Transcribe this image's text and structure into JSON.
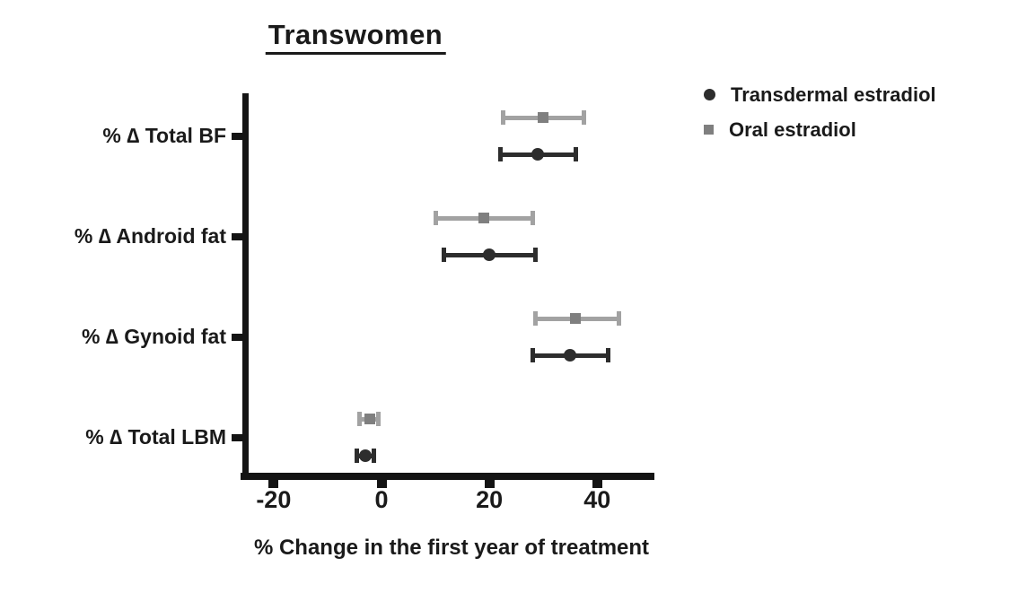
{
  "chart_data": {
    "type": "scatter",
    "subtype": "horizontal-dot-plot-with-error-bars",
    "title": "Transwomen",
    "xlabel": "% Change in the first year of treatment",
    "ylabel": "",
    "categories": [
      "% ∆ Total BF",
      "% ∆ Android fat",
      "% ∆ Gynoid fat",
      "% ∆ Total LBM"
    ],
    "x_ticks": [
      -20,
      0,
      20,
      40
    ],
    "xlim": [
      -26,
      50
    ],
    "grid": false,
    "legend_position": "top-right",
    "axis_color": "#141414",
    "series": [
      {
        "name": "Transdermal estradiol",
        "marker": "circle",
        "color": "#2d2d2d",
        "line_color": "#2d2d2d",
        "values": [
          29,
          20,
          35,
          -3
        ],
        "ci_low": [
          22,
          11.5,
          28,
          -4.5
        ],
        "ci_high": [
          36,
          28.5,
          42,
          -1.4
        ]
      },
      {
        "name": "Oral estradiol",
        "marker": "square",
        "color": "#7f7f7f",
        "line_color": "#a2a2a2",
        "values": [
          30,
          19,
          36,
          -2.2
        ],
        "ci_low": [
          22.5,
          10,
          28.5,
          -4
        ],
        "ci_high": [
          37.5,
          28,
          44,
          -0.5
        ]
      }
    ]
  }
}
